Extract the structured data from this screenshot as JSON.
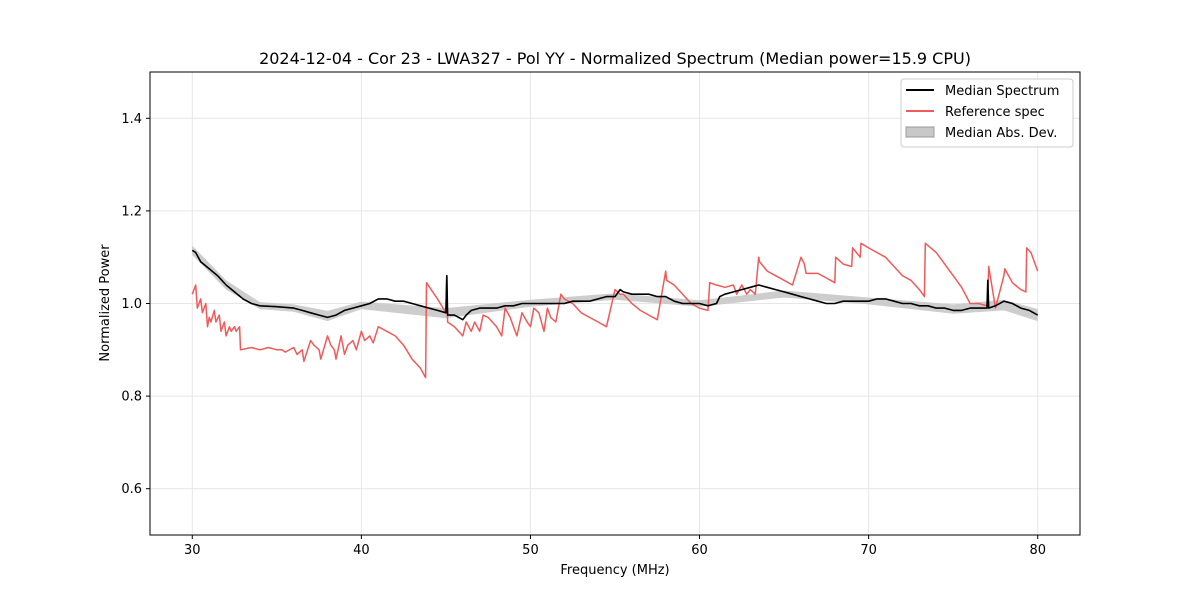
{
  "chart_data": {
    "type": "line",
    "title": "2024-12-04 - Cor 23 - LWA327 - Pol YY - Normalized Spectrum (Median power=15.9 CPU)",
    "xlabel": "Frequency (MHz)",
    "ylabel": "Normalized Power",
    "xlim": [
      27.5,
      82.5
    ],
    "ylim": [
      0.5,
      1.5
    ],
    "xticks": [
      30,
      40,
      50,
      60,
      70,
      80
    ],
    "yticks": [
      0.6,
      0.8,
      1.0,
      1.2,
      1.4
    ],
    "xtick_labels": [
      "30",
      "40",
      "50",
      "60",
      "70",
      "80"
    ],
    "ytick_labels": [
      "0.6",
      "0.8",
      "1.0",
      "1.2",
      "1.4"
    ],
    "grid": true,
    "legend_position": "top-right",
    "legend": [
      "Median Spectrum",
      "Reference spec",
      "Median Abs. Dev."
    ],
    "colors": {
      "median": "#000000",
      "reference": "#f05a5a",
      "mad": "#c8c8c8",
      "grid": "#e6e6e6",
      "axes": "#000000"
    },
    "series": [
      {
        "name": "Median Spectrum",
        "x": [
          30.0,
          30.2,
          30.5,
          31.0,
          31.5,
          32.0,
          32.5,
          33.0,
          33.5,
          34.0,
          35.0,
          36.0,
          36.5,
          37.0,
          37.5,
          38.0,
          38.5,
          39.0,
          39.5,
          40.0,
          40.5,
          41.0,
          41.5,
          42.0,
          42.5,
          43.0,
          43.5,
          44.0,
          44.5,
          45.0,
          45.05,
          45.1,
          45.5,
          46.0,
          46.2,
          46.5,
          47.0,
          47.5,
          48.0,
          48.5,
          49.0,
          49.5,
          50.0,
          50.5,
          51.0,
          51.5,
          52.0,
          52.5,
          53.0,
          53.5,
          54.0,
          54.5,
          55.0,
          55.3,
          55.5,
          56.0,
          56.5,
          57.0,
          57.5,
          58.0,
          58.5,
          59.0,
          59.5,
          60.0,
          60.5,
          61.0,
          61.2,
          61.5,
          62.0,
          62.5,
          63.0,
          63.5,
          64.0,
          64.5,
          65.0,
          65.5,
          66.0,
          66.5,
          67.0,
          67.5,
          68.0,
          68.5,
          69.0,
          69.5,
          70.0,
          70.5,
          71.0,
          71.5,
          72.0,
          72.5,
          73.0,
          73.5,
          74.0,
          74.5,
          75.0,
          75.5,
          76.0,
          76.5,
          77.0,
          77.05,
          77.1,
          77.5,
          78.0,
          78.5,
          79.0,
          79.5,
          80.0
        ],
        "y": [
          1.115,
          1.11,
          1.09,
          1.075,
          1.06,
          1.04,
          1.025,
          1.01,
          1.0,
          0.995,
          0.993,
          0.99,
          0.985,
          0.98,
          0.975,
          0.97,
          0.975,
          0.985,
          0.99,
          0.995,
          1.0,
          1.01,
          1.01,
          1.005,
          1.005,
          1.0,
          0.995,
          0.99,
          0.985,
          0.98,
          1.06,
          0.975,
          0.975,
          0.965,
          0.975,
          0.985,
          0.99,
          0.99,
          0.99,
          0.995,
          0.995,
          1.0,
          1.0,
          1.0,
          1.0,
          1.0,
          1.0,
          1.005,
          1.005,
          1.005,
          1.01,
          1.015,
          1.015,
          1.03,
          1.025,
          1.02,
          1.02,
          1.02,
          1.015,
          1.015,
          1.005,
          1.0,
          1.0,
          1.0,
          0.995,
          1.0,
          1.015,
          1.02,
          1.025,
          1.03,
          1.035,
          1.04,
          1.035,
          1.03,
          1.025,
          1.02,
          1.015,
          1.01,
          1.005,
          1.0,
          1.0,
          1.005,
          1.005,
          1.005,
          1.005,
          1.01,
          1.01,
          1.005,
          1.0,
          1.0,
          0.995,
          0.995,
          0.99,
          0.99,
          0.985,
          0.985,
          0.99,
          0.99,
          0.99,
          1.05,
          0.99,
          0.995,
          1.005,
          1.0,
          0.99,
          0.985,
          0.975
        ]
      },
      {
        "name": "Reference spec",
        "x": [
          30.0,
          30.2,
          30.3,
          30.5,
          30.6,
          30.8,
          30.9,
          31.0,
          31.1,
          31.3,
          31.4,
          31.6,
          31.7,
          31.9,
          32.0,
          32.2,
          32.3,
          32.5,
          32.6,
          32.8,
          32.85,
          33.5,
          34.0,
          34.5,
          35.0,
          35.3,
          35.5,
          36.0,
          36.2,
          36.5,
          36.6,
          37.0,
          37.2,
          37.5,
          37.6,
          38.0,
          38.2,
          38.4,
          38.5,
          38.8,
          39.0,
          39.2,
          39.5,
          39.7,
          40.0,
          40.2,
          40.5,
          40.7,
          41.0,
          41.5,
          42.0,
          42.5,
          43.0,
          43.5,
          43.8,
          43.85,
          44.5,
          45.0,
          45.05,
          45.1,
          45.5,
          46.0,
          46.2,
          46.5,
          46.7,
          47.0,
          47.2,
          47.5,
          48.0,
          48.3,
          48.5,
          48.8,
          49.0,
          49.2,
          49.5,
          49.8,
          50.0,
          50.2,
          50.5,
          50.8,
          51.0,
          51.2,
          51.5,
          51.8,
          52.0,
          52.5,
          53.0,
          53.5,
          54.0,
          54.5,
          55.0,
          55.3,
          55.5,
          56.0,
          56.5,
          57.0,
          57.5,
          58.0,
          58.05,
          58.5,
          59.0,
          59.5,
          60.0,
          60.5,
          60.6,
          61.0,
          61.5,
          62.0,
          62.2,
          62.5,
          62.8,
          63.0,
          63.3,
          63.5,
          63.55,
          64.0,
          64.5,
          65.0,
          65.5,
          66.0,
          66.2,
          66.3,
          67.0,
          67.5,
          68.0,
          68.05,
          68.5,
          69.0,
          69.05,
          69.5,
          69.55,
          70.0,
          70.5,
          71.0,
          71.5,
          72.0,
          72.5,
          73.0,
          73.3,
          73.35,
          74.0,
          74.5,
          75.0,
          75.5,
          76.0,
          76.5,
          77.0,
          77.05,
          77.1,
          77.5,
          78.0,
          78.05,
          78.5,
          79.0,
          79.3,
          79.35,
          79.6,
          79.8,
          80.0
        ],
        "y": [
          1.02,
          1.04,
          0.99,
          1.01,
          0.98,
          1.0,
          0.95,
          0.97,
          0.96,
          0.985,
          0.96,
          0.975,
          0.94,
          0.96,
          0.93,
          0.95,
          0.94,
          0.95,
          0.94,
          0.95,
          0.9,
          0.905,
          0.9,
          0.905,
          0.9,
          0.9,
          0.895,
          0.905,
          0.89,
          0.9,
          0.875,
          0.92,
          0.91,
          0.9,
          0.88,
          0.93,
          0.91,
          0.9,
          0.88,
          0.93,
          0.89,
          0.91,
          0.92,
          0.9,
          0.94,
          0.92,
          0.93,
          0.915,
          0.95,
          0.94,
          0.93,
          0.91,
          0.88,
          0.86,
          0.84,
          1.045,
          1.01,
          0.98,
          1.06,
          0.96,
          0.95,
          0.93,
          0.96,
          0.94,
          0.96,
          0.94,
          0.975,
          0.97,
          0.95,
          0.93,
          0.99,
          0.97,
          0.95,
          0.93,
          0.98,
          0.96,
          0.95,
          0.99,
          0.98,
          0.94,
          0.99,
          0.97,
          0.96,
          1.02,
          1.01,
          1.0,
          0.98,
          0.97,
          0.96,
          0.95,
          1.03,
          1.02,
          1.02,
          1.0,
          0.985,
          0.975,
          0.965,
          1.07,
          1.05,
          1.04,
          1.02,
          1.0,
          0.99,
          0.985,
          1.045,
          1.04,
          1.035,
          1.04,
          1.02,
          1.04,
          1.02,
          1.03,
          1.02,
          1.1,
          1.09,
          1.07,
          1.06,
          1.05,
          1.04,
          1.1,
          1.085,
          1.065,
          1.065,
          1.055,
          1.045,
          1.1,
          1.085,
          1.08,
          1.12,
          1.1,
          1.13,
          1.12,
          1.11,
          1.1,
          1.08,
          1.06,
          1.05,
          1.03,
          1.015,
          1.13,
          1.11,
          1.085,
          1.06,
          1.035,
          1.0,
          1.0,
          0.995,
          1.02,
          1.08,
          0.99,
          1.06,
          1.075,
          1.045,
          1.03,
          1.025,
          1.12,
          1.11,
          1.09,
          1.07
        ]
      }
    ],
    "mad_band": {
      "x": [
        30.0,
        32.0,
        34.0,
        36.0,
        38.0,
        40.0,
        45.0,
        50.0,
        55.0,
        60.0,
        65.0,
        70.0,
        75.0,
        78.0,
        80.0
      ],
      "lower": [
        1.105,
        1.03,
        0.988,
        0.982,
        0.962,
        0.988,
        0.968,
        0.993,
        1.008,
        0.993,
        1.013,
        0.998,
        0.978,
        0.985,
        0.962
      ],
      "upper": [
        1.125,
        1.05,
        1.003,
        0.998,
        0.984,
        1.004,
        0.99,
        1.008,
        1.022,
        1.007,
        1.028,
        1.013,
        0.998,
        1.008,
        0.988
      ]
    }
  }
}
